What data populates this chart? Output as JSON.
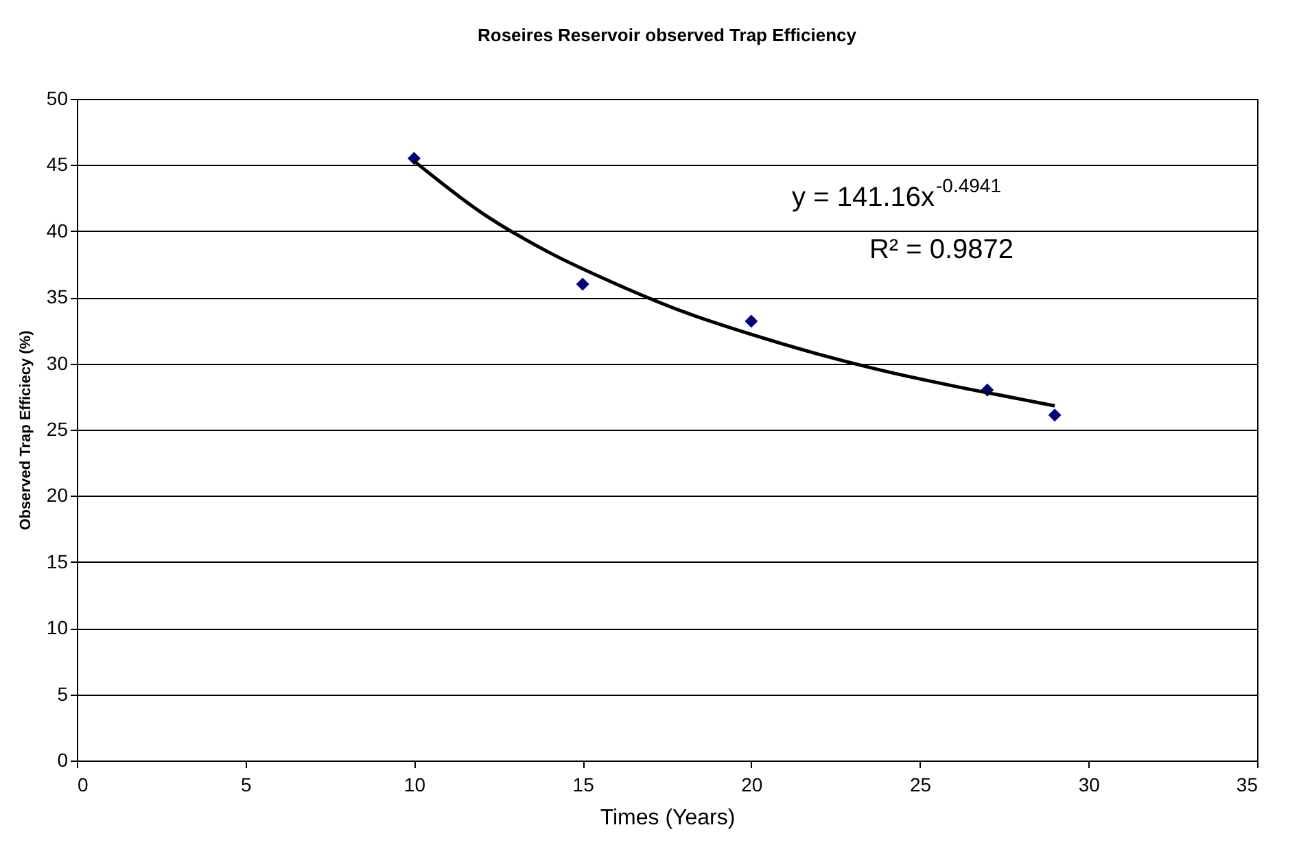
{
  "chart_data": {
    "type": "scatter",
    "title": "Roseires Reservoir observed Trap Efficiency",
    "xlabel": "Times (Years)",
    "ylabel": "Observed Trap Efficiecy (%)",
    "xlim": [
      0,
      35
    ],
    "xticks": [
      0,
      5,
      10,
      15,
      20,
      25,
      30,
      35
    ],
    "ylim": [
      0,
      50
    ],
    "yticks": [
      0,
      5,
      10,
      15,
      20,
      25,
      30,
      35,
      40,
      45,
      50
    ],
    "grid": "y",
    "series": [
      {
        "marker": "diamond",
        "color": "#000080",
        "x": [
          10,
          15,
          20,
          27,
          29
        ],
        "values": [
          45.5,
          36.0,
          33.2,
          28.0,
          26.1
        ]
      },
      {
        "type": "line",
        "color": "#000000",
        "x": [
          10,
          12,
          14,
          16,
          18,
          20,
          22,
          24,
          26,
          28,
          29
        ],
        "values": [
          45.3,
          41.4,
          38.4,
          36.0,
          33.9,
          32.2,
          30.7,
          29.4,
          28.3,
          27.3,
          26.8
        ]
      }
    ],
    "annotations": [
      "y = 141.16x$^{-0.4941}$",
      "R² = 0.9872"
    ]
  }
}
